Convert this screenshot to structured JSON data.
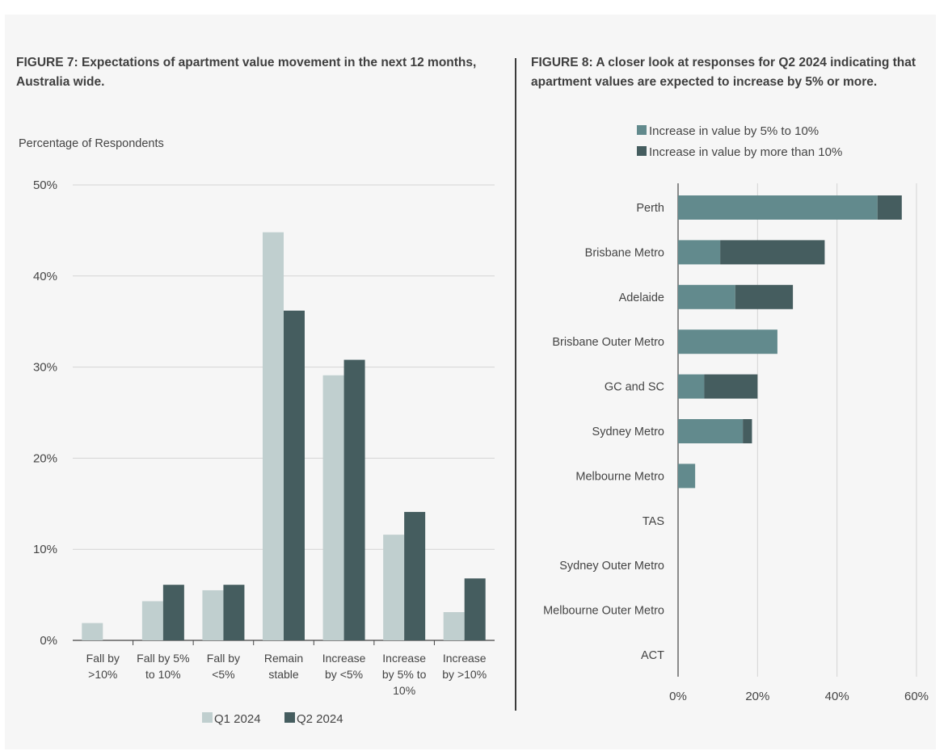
{
  "figures": {
    "left": {
      "title": "FIGURE 7: Expectations of apartment value movement in the next 12 months, Australia wide."
    },
    "right": {
      "title": "FIGURE 8: A closer look at responses for Q2 2024 indicating that apartment values are expected to increase by 5% or more."
    }
  },
  "colors": {
    "q1": "#c0cfcf",
    "q2": "#455d5f",
    "inc5to10": "#628a8d",
    "incover10": "#455d5f",
    "grid": "#d4d4d4",
    "axis": "#444444",
    "text": "#444444"
  },
  "chart_data": [
    {
      "type": "bar",
      "title": "FIGURE 7: Expectations of apartment value movement in the next 12 months, Australia wide.",
      "ylabel": "Percentage of Respondents",
      "xlabel": "",
      "categories": [
        [
          "Fall by",
          ">10%"
        ],
        [
          "Fall by 5%",
          "to 10%"
        ],
        [
          "Fall by",
          "<5%"
        ],
        [
          "Remain",
          "stable"
        ],
        [
          "Increase",
          "by <5%"
        ],
        [
          "Increase",
          "by 5% to",
          "10%"
        ],
        [
          "Increase",
          "by >10%"
        ]
      ],
      "series": [
        {
          "name": "Q1 2024",
          "values": [
            1.9,
            4.3,
            5.5,
            44.8,
            29.1,
            11.6,
            3.1
          ]
        },
        {
          "name": "Q2 2024",
          "values": [
            0,
            6.1,
            6.1,
            36.2,
            30.8,
            14.1,
            6.8
          ]
        }
      ],
      "ylim": [
        0,
        50
      ],
      "yticks": [
        "0%",
        "10%",
        "20%",
        "30%",
        "40%",
        "50%"
      ],
      "grid": true,
      "legend": "bottom"
    },
    {
      "type": "bar",
      "orientation": "horizontal",
      "stacked": true,
      "title": "FIGURE 8: A closer look at responses for Q2 2024 indicating that apartment values are expected to increase by 5% or more.",
      "categories": [
        "Perth",
        "Brisbane Metro",
        "Adelaide",
        "Brisbane Outer Metro",
        "GC and SC",
        "Sydney Metro",
        "Melbourne Metro",
        "TAS",
        "Sydney Outer Metro",
        "Melbourne Outer Metro",
        "ACT"
      ],
      "series": [
        {
          "name": "Increase in value by 5% to 10%",
          "values": [
            50.2,
            10.6,
            14.4,
            25.0,
            6.6,
            16.3,
            4.3,
            0,
            0,
            0,
            0
          ]
        },
        {
          "name": "Increase in value by more than 10%",
          "values": [
            6.1,
            26.3,
            14.5,
            0,
            13.4,
            2.3,
            0,
            0,
            0,
            0,
            0
          ]
        }
      ],
      "xlim": [
        0,
        60
      ],
      "xticks": [
        "0%",
        "20%",
        "40%",
        "60%"
      ],
      "grid": true,
      "legend": "top"
    }
  ]
}
